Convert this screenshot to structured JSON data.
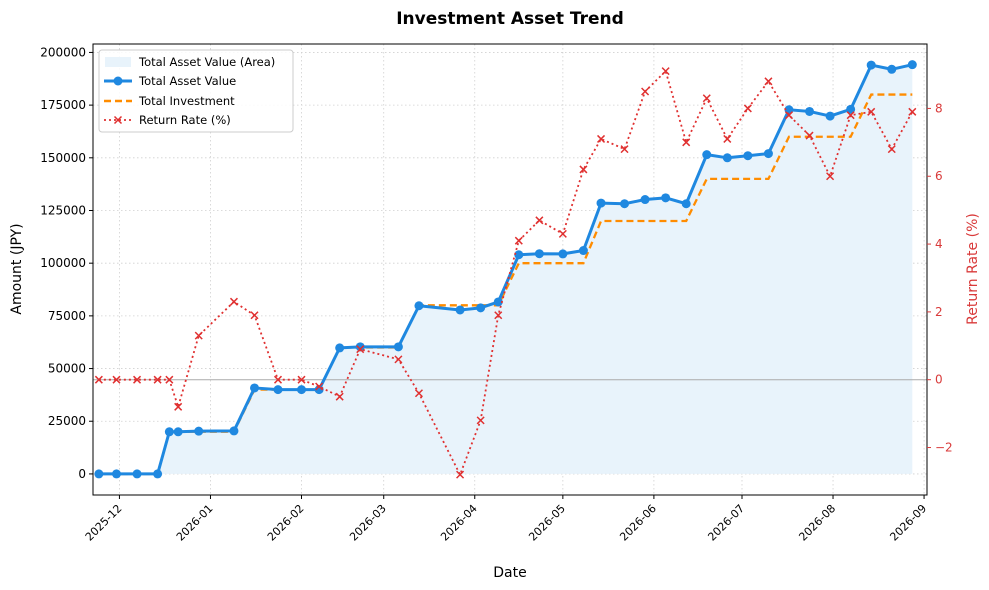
{
  "chart_data": {
    "type": "line",
    "title": "Investment Asset Trend",
    "xlabel": "Date",
    "ylabel": "Amount (JPY)",
    "y2label": "Return Rate (%)",
    "x_axis_type": "date",
    "xlim": [
      "2025-11-22",
      "2026-09-02"
    ],
    "ylim": [
      -10000,
      204000
    ],
    "y2lim": [
      -3.4,
      9.9
    ],
    "x_ticks": [
      "2025-12-01",
      "2026-01-01",
      "2026-02-01",
      "2026-03-01",
      "2026-04-01",
      "2026-05-01",
      "2026-06-01",
      "2026-07-01",
      "2026-08-01",
      "2026-09-01"
    ],
    "x_tick_labels": [
      "2025-12",
      "2026-01",
      "2026-02",
      "2026-03",
      "2026-04",
      "2026-05",
      "2026-06",
      "2026-07",
      "2026-08",
      "2026-09"
    ],
    "y_ticks": [
      0,
      25000,
      50000,
      75000,
      100000,
      125000,
      150000,
      175000,
      200000
    ],
    "y_tick_labels": [
      "0",
      "25000",
      "50000",
      "75000",
      "100000",
      "125000",
      "150000",
      "175000",
      "200000"
    ],
    "y2_ticks": [
      -2,
      0,
      2,
      4,
      6,
      8
    ],
    "y2_tick_labels": [
      "−2",
      "0",
      "2",
      "4",
      "6",
      "8"
    ],
    "grid": true,
    "legend_position": "top-left",
    "legend": [
      "Total Asset Value (Area)",
      "Total Asset Value",
      "Total Investment",
      "Return Rate (%)"
    ],
    "dates": [
      "2025-11-24",
      "2025-11-30",
      "2025-12-07",
      "2025-12-14",
      "2025-12-18",
      "2025-12-21",
      "2025-12-28",
      "2026-01-09",
      "2026-01-16",
      "2026-01-24",
      "2026-02-01",
      "2026-02-07",
      "2026-02-14",
      "2026-02-21",
      "2026-03-06",
      "2026-03-13",
      "2026-03-27",
      "2026-04-03",
      "2026-04-09",
      "2026-04-16",
      "2026-04-23",
      "2026-05-01",
      "2026-05-08",
      "2026-05-14",
      "2026-05-22",
      "2026-05-29",
      "2026-06-05",
      "2026-06-12",
      "2026-06-19",
      "2026-06-26",
      "2026-07-03",
      "2026-07-10",
      "2026-07-17",
      "2026-07-24",
      "2026-07-31",
      "2026-08-07",
      "2026-08-14",
      "2026-08-21",
      "2026-08-28"
    ],
    "series": [
      {
        "name": "Total Asset Value",
        "color": "#1f88e0",
        "style": "solid-marker",
        "values": [
          0,
          0,
          0,
          0,
          20000,
          20000,
          20300,
          20400,
          40800,
          40000,
          40000,
          40000,
          59800,
          60300,
          60300,
          79800,
          77800,
          78800,
          81600,
          104000,
          104500,
          104400,
          106000,
          128500,
          128200,
          130200,
          131000,
          128200,
          151500,
          150000,
          151000,
          152000,
          172800,
          172000,
          169800,
          173000,
          194000,
          192000,
          194200
        ]
      },
      {
        "name": "Total Investment",
        "color": "#ff8c00",
        "style": "dashed-step",
        "values": [
          0,
          0,
          0,
          0,
          20000,
          20000,
          20000,
          20000,
          40000,
          40000,
          40000,
          40000,
          60000,
          60000,
          60000,
          80000,
          80000,
          80000,
          80000,
          100000,
          100000,
          100000,
          100000,
          120000,
          120000,
          120000,
          120000,
          120000,
          140000,
          140000,
          140000,
          140000,
          160000,
          160000,
          160000,
          160000,
          180000,
          180000,
          180000
        ]
      },
      {
        "name": "Return Rate (%)",
        "color": "#e03030",
        "style": "dotted-x",
        "axis": "right",
        "values": [
          0,
          0,
          0,
          0,
          0,
          -0.8,
          1.3,
          2.3,
          1.9,
          0,
          0,
          -0.2,
          -0.5,
          0.9,
          0.6,
          -0.4,
          -2.8,
          -1.2,
          1.9,
          4.1,
          4.7,
          4.3,
          6.2,
          7.1,
          6.8,
          8.5,
          9.1,
          7.0,
          8.3,
          7.1,
          8.0,
          8.8,
          7.8,
          7.2,
          6.0,
          7.8,
          7.9,
          6.8,
          7.9
        ]
      }
    ],
    "colors": {
      "area_fill": "#e8f3fb",
      "reference_line": "#aaaaaa",
      "grid": "#d0d0d0",
      "y2_axis": "#d93a3a"
    }
  }
}
